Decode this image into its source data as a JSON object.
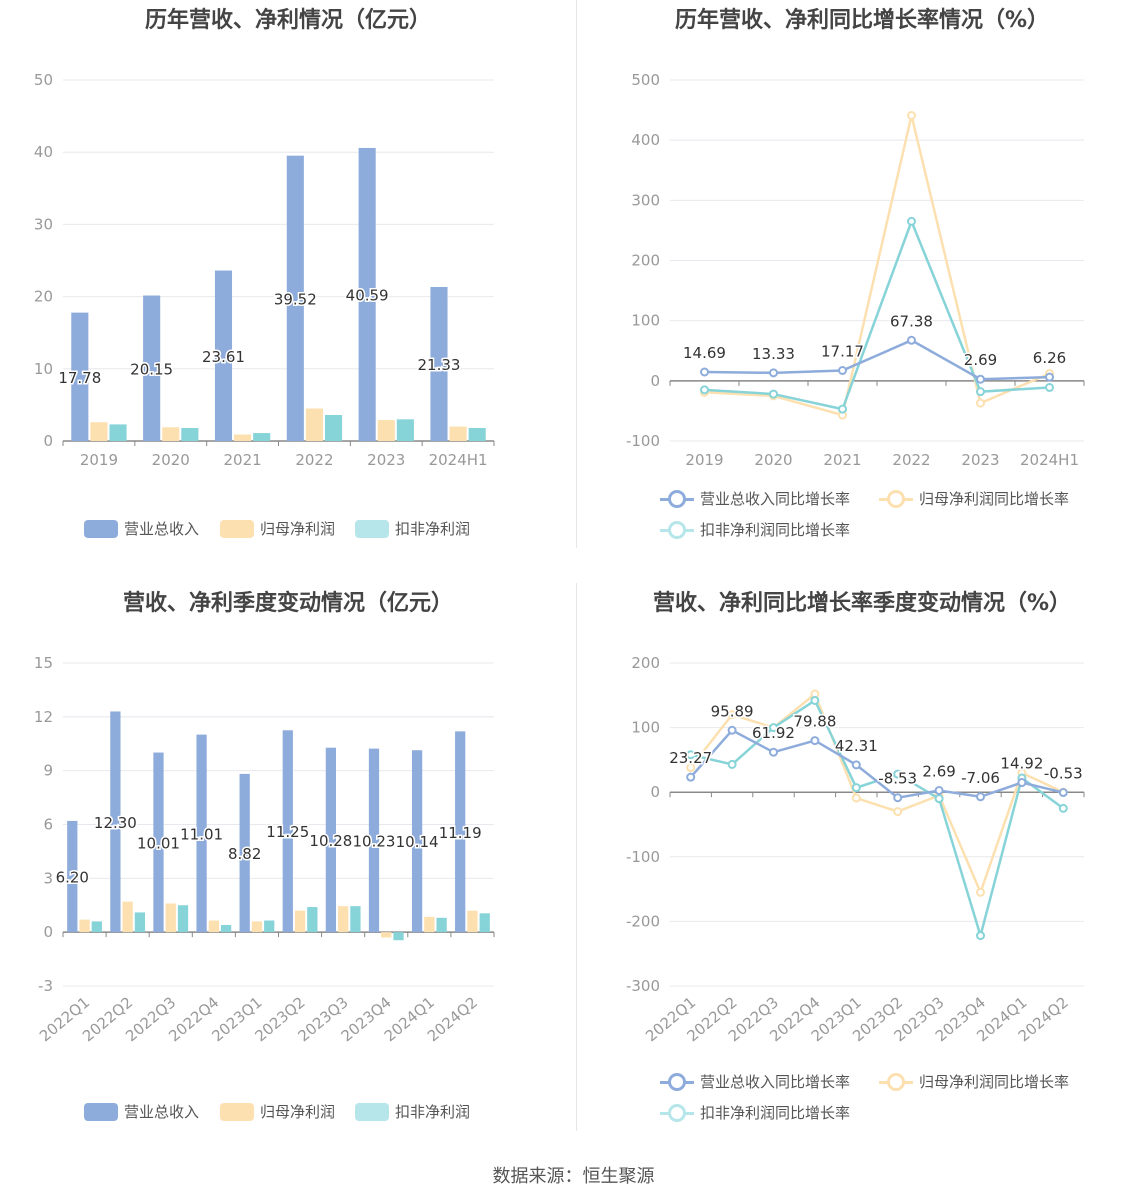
{
  "colors": {
    "revenue": "#8eacdb",
    "parent_profit": "#fde0b0",
    "deducted_profit": "#86d3d8",
    "axis": "#999999",
    "grid": "#e8e8ee",
    "label": "#333333"
  },
  "panels": [
    {
      "title": "历年营收、净利情况（亿元）",
      "legend": [
        "营业总收入",
        "归母净利润",
        "扣非净利润"
      ]
    },
    {
      "title": "历年营收、净利同比增长率情况（%）",
      "legend": [
        "营业总收入同比增长率",
        "归母净利润同比增长率",
        "扣非净利润同比增长率"
      ]
    },
    {
      "title": "营收、净利季度变动情况（亿元）",
      "legend": [
        "营业总收入",
        "归母净利润",
        "扣非净利润"
      ]
    },
    {
      "title": "营收、净利同比增长率季度变动情况（%）",
      "legend": [
        "营业总收入同比增长率",
        "归母净利润同比增长率",
        "扣非净利润同比增长率"
      ]
    }
  ],
  "source": "数据来源：恒生聚源",
  "chart_data": [
    {
      "type": "bar",
      "categories": [
        "2019",
        "2020",
        "2021",
        "2022",
        "2023",
        "2024H1"
      ],
      "ylim": [
        0,
        50
      ],
      "yticks": [
        0,
        10,
        20,
        30,
        40,
        50
      ],
      "series": [
        {
          "name": "营业总收入",
          "values": [
            17.78,
            20.15,
            23.61,
            39.52,
            40.59,
            21.33
          ],
          "labels": [
            "17.78",
            "20.15",
            "23.61",
            "39.52",
            "40.59",
            "21.33"
          ]
        },
        {
          "name": "归母净利润",
          "values": [
            2.6,
            1.9,
            0.9,
            4.5,
            2.9,
            2.0
          ]
        },
        {
          "name": "扣非净利润",
          "values": [
            2.3,
            1.8,
            1.1,
            3.6,
            3.0,
            1.8
          ]
        }
      ]
    },
    {
      "type": "line",
      "categories": [
        "2019",
        "2020",
        "2021",
        "2022",
        "2023",
        "2024H1"
      ],
      "ylim": [
        -100,
        500
      ],
      "yticks": [
        -100,
        0,
        100,
        200,
        300,
        400,
        500
      ],
      "series": [
        {
          "name": "营业总收入同比增长率",
          "values": [
            14.69,
            13.33,
            17.17,
            67.38,
            2.69,
            6.26
          ],
          "labels": [
            "14.69",
            "13.33",
            "17.17",
            "67.38",
            "2.69",
            "6.26"
          ]
        },
        {
          "name": "归母净利润同比增长率",
          "values": [
            -19,
            -25,
            -57,
            441,
            -37,
            12
          ]
        },
        {
          "name": "扣非净利润同比增长率",
          "values": [
            -15,
            -22,
            -47,
            265,
            -18,
            -11
          ]
        }
      ]
    },
    {
      "type": "bar",
      "categories": [
        "2022Q1",
        "2022Q2",
        "2022Q3",
        "2022Q4",
        "2023Q1",
        "2023Q2",
        "2023Q3",
        "2023Q4",
        "2024Q1",
        "2024Q2"
      ],
      "ylim": [
        -3,
        15
      ],
      "yticks": [
        -3,
        0,
        3,
        6,
        9,
        12,
        15
      ],
      "series": [
        {
          "name": "营业总收入",
          "values": [
            6.2,
            12.3,
            10.01,
            11.01,
            8.82,
            11.25,
            10.28,
            10.23,
            10.14,
            11.19
          ],
          "labels": [
            "6.20",
            "12.30",
            "10.01",
            "11.01",
            "8.82",
            "11.25",
            "10.28",
            "10.23",
            "10.14",
            "11.19"
          ]
        },
        {
          "name": "归母净利润",
          "values": [
            0.7,
            1.7,
            1.6,
            0.65,
            0.6,
            1.2,
            1.45,
            -0.3,
            0.85,
            1.2
          ]
        },
        {
          "name": "扣非净利润",
          "values": [
            0.6,
            1.1,
            1.5,
            0.4,
            0.65,
            1.4,
            1.45,
            -0.45,
            0.8,
            1.05
          ]
        }
      ]
    },
    {
      "type": "line",
      "categories": [
        "2022Q1",
        "2022Q2",
        "2022Q3",
        "2022Q4",
        "2023Q1",
        "2023Q2",
        "2023Q3",
        "2023Q4",
        "2024Q1",
        "2024Q2"
      ],
      "ylim": [
        -300,
        200
      ],
      "yticks": [
        -300,
        -200,
        -100,
        0,
        100,
        200
      ],
      "series": [
        {
          "name": "营业总收入同比增长率",
          "values": [
            23.27,
            95.89,
            61.92,
            79.88,
            42.31,
            -8.53,
            2.69,
            -7.06,
            14.92,
            -0.53
          ],
          "labels": [
            "23.27",
            "95.89",
            "61.92",
            "79.88",
            "42.31",
            "-8.53",
            "2.69",
            "-7.06",
            "14.92",
            "-0.53"
          ]
        },
        {
          "name": "归母净利润同比增长率",
          "values": [
            38,
            120,
            100,
            152,
            -9,
            -30,
            -5,
            -155,
            30,
            0
          ]
        },
        {
          "name": "扣非净利润同比增长率",
          "values": [
            58,
            43,
            100,
            142,
            7,
            28,
            -10,
            -222,
            22,
            -25
          ]
        }
      ]
    }
  ]
}
